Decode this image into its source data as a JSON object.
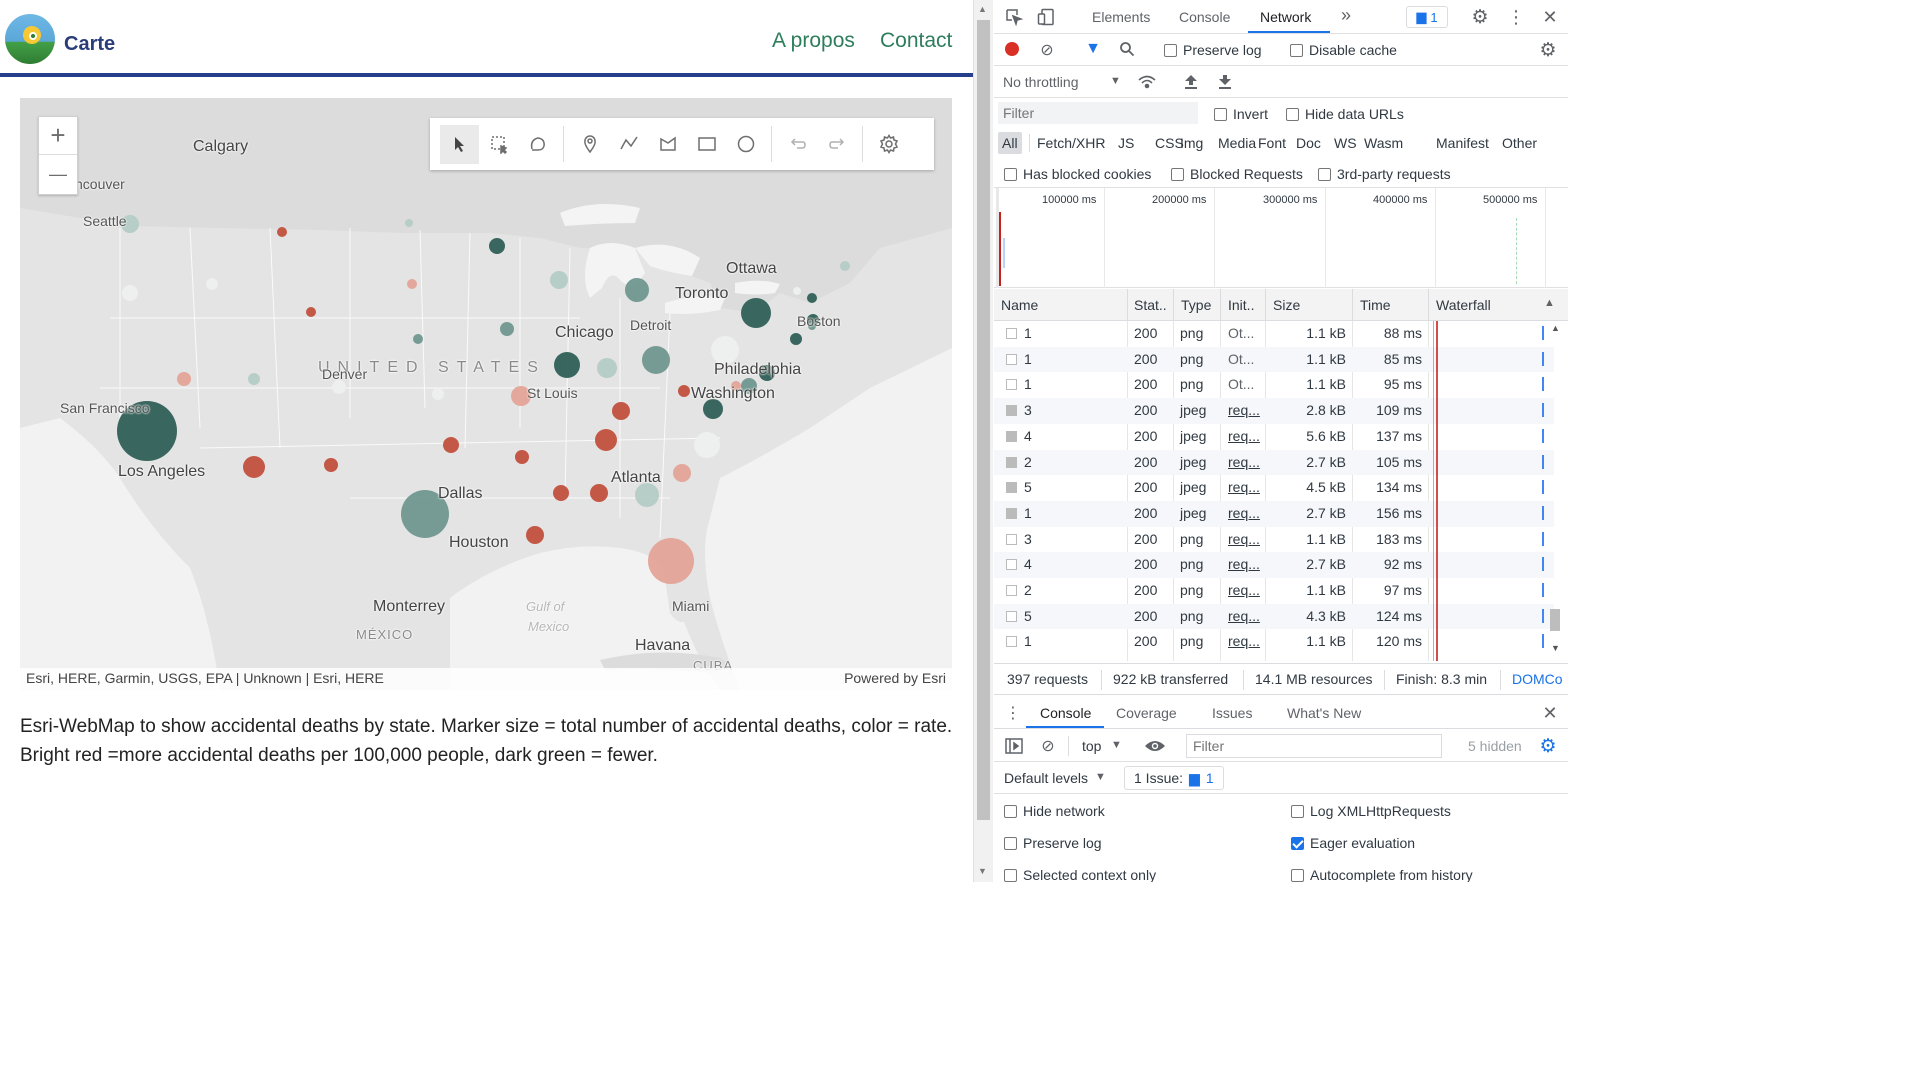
{
  "site": {
    "title": "Carte",
    "nav": [
      "A propos",
      "Contact"
    ]
  },
  "map": {
    "labels": [
      {
        "text": "Calgary",
        "cls": ""
      },
      {
        "text": "ncouver",
        "cls": "small"
      },
      {
        "text": "Seattle",
        "cls": "small"
      },
      {
        "text": "Ottawa",
        "cls": ""
      },
      {
        "text": "Toronto",
        "cls": ""
      },
      {
        "text": "Chicago",
        "cls": ""
      },
      {
        "text": "Detroit",
        "cls": "small"
      },
      {
        "text": "Boston",
        "cls": "small"
      },
      {
        "text": "UNITED STATES",
        "cls": "country"
      },
      {
        "text": "Denver",
        "cls": "small"
      },
      {
        "text": "Philadelphia",
        "cls": ""
      },
      {
        "text": "Washington",
        "cls": ""
      },
      {
        "text": "St Louis",
        "cls": "small"
      },
      {
        "text": "San Francisco",
        "cls": "small"
      },
      {
        "text": "Los Angeles",
        "cls": ""
      },
      {
        "text": "Dallas",
        "cls": ""
      },
      {
        "text": "Atlanta",
        "cls": ""
      },
      {
        "text": "Houston",
        "cls": ""
      },
      {
        "text": "Monterrey",
        "cls": ""
      },
      {
        "text": "Gulf of",
        "cls": "water"
      },
      {
        "text": "Mexico",
        "cls": "water"
      },
      {
        "text": "MÉXICO",
        "cls": "region"
      },
      {
        "text": "Miami",
        "cls": "small"
      },
      {
        "text": "Havana",
        "cls": ""
      },
      {
        "text": "CUBA",
        "cls": "region"
      }
    ],
    "markers_note": "Markers: size = total accidental deaths, color = rate per 100,000",
    "colors": {
      "dark_green": "#2f5f56",
      "mid_green": "#6f978f",
      "light_green": "#b4cbc6",
      "pale": "#eef0ef",
      "light_red": "#e3a397",
      "red": "#c2503d"
    },
    "attribution_left": "Esri, HERE, Garmin, USGS, EPA | Unknown | Esri, HERE",
    "attribution_right": "Powered by Esri",
    "zoom_in": "+",
    "zoom_out": "—"
  },
  "description": {
    "line1": "Esri-WebMap to show accidental deaths by state. Marker size = total number of accidental deaths, color = rate.",
    "line2": "Bright red =more accidental deaths per 100,000 people, dark green = fewer."
  },
  "devtools": {
    "tabs": [
      "Elements",
      "Console",
      "Network"
    ],
    "more": "»",
    "issues_count": "1",
    "toolbar": {
      "preserve_log": "Preserve log",
      "disable_cache": "Disable cache",
      "throttling": "No throttling"
    },
    "filter_placeholder": "Filter",
    "invert": "Invert",
    "hide_data_urls": "Hide data URLs",
    "types": [
      "All",
      "Fetch/XHR",
      "JS",
      "CSS",
      "Img",
      "Media",
      "Font",
      "Doc",
      "WS",
      "Wasm",
      "Manifest",
      "Other"
    ],
    "cookies": {
      "has_blocked": "Has blocked cookies",
      "blocked_requests": "Blocked Requests",
      "third_party": "3rd-party requests"
    },
    "overview_ticks": [
      "100000 ms",
      "200000 ms",
      "300000 ms",
      "400000 ms",
      "500000 ms"
    ],
    "columns": [
      "Name",
      "Stat..",
      "Type",
      "Init..",
      "Size",
      "Time",
      "Waterfall"
    ],
    "rows": [
      {
        "name": "1",
        "status": "200",
        "type": "png",
        "init": "Ot...",
        "size": "1.1 kB",
        "time": "88 ms"
      },
      {
        "name": "1",
        "status": "200",
        "type": "png",
        "init": "Ot...",
        "size": "1.1 kB",
        "time": "85 ms"
      },
      {
        "name": "1",
        "status": "200",
        "type": "png",
        "init": "Ot...",
        "size": "1.1 kB",
        "time": "95 ms"
      },
      {
        "name": "3",
        "status": "200",
        "type": "jpeg",
        "init": "req...",
        "size": "2.8 kB",
        "time": "109 ms"
      },
      {
        "name": "4",
        "status": "200",
        "type": "jpeg",
        "init": "req...",
        "size": "5.6 kB",
        "time": "137 ms"
      },
      {
        "name": "2",
        "status": "200",
        "type": "jpeg",
        "init": "req...",
        "size": "2.7 kB",
        "time": "105 ms"
      },
      {
        "name": "5",
        "status": "200",
        "type": "jpeg",
        "init": "req...",
        "size": "4.5 kB",
        "time": "134 ms"
      },
      {
        "name": "1",
        "status": "200",
        "type": "jpeg",
        "init": "req...",
        "size": "2.7 kB",
        "time": "156 ms"
      },
      {
        "name": "3",
        "status": "200",
        "type": "png",
        "init": "req...",
        "size": "1.1 kB",
        "time": "183 ms"
      },
      {
        "name": "4",
        "status": "200",
        "type": "png",
        "init": "req...",
        "size": "2.7 kB",
        "time": "92 ms"
      },
      {
        "name": "2",
        "status": "200",
        "type": "png",
        "init": "req...",
        "size": "1.1 kB",
        "time": "97 ms"
      },
      {
        "name": "5",
        "status": "200",
        "type": "png",
        "init": "req...",
        "size": "4.3 kB",
        "time": "124 ms"
      },
      {
        "name": "1",
        "status": "200",
        "type": "png",
        "init": "req...",
        "size": "1.1 kB",
        "time": "120 ms"
      }
    ],
    "status_bar": {
      "requests": "397 requests",
      "transferred": "922 kB transferred",
      "resources": "14.1 MB resources",
      "finish": "Finish: 8.3 min",
      "domc": "DOMCo"
    },
    "drawer_tabs": [
      "Console",
      "Coverage",
      "Issues",
      "What's New"
    ],
    "console": {
      "context": "top",
      "filter_placeholder": "Filter",
      "hidden": "5 hidden",
      "levels": "Default levels",
      "issue_label": "1 Issue:",
      "issue_count": "1",
      "settings": [
        {
          "label": "Hide network",
          "checked": false
        },
        {
          "label": "Log XMLHttpRequests",
          "checked": false
        },
        {
          "label": "Preserve log",
          "checked": false
        },
        {
          "label": "Eager evaluation",
          "checked": true
        },
        {
          "label": "Selected context only",
          "checked": false
        },
        {
          "label": "Autocomplete from history",
          "checked": false
        }
      ]
    }
  }
}
